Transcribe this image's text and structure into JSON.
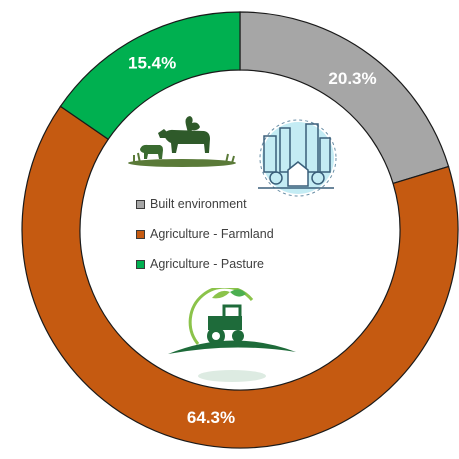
{
  "chart_data": {
    "type": "pie",
    "title": "",
    "categories": [
      "Built environment",
      "Agriculture - Farmland",
      "Agriculture - Pasture"
    ],
    "values": [
      20.3,
      64.3,
      15.4
    ],
    "value_labels": [
      "20.3%",
      "64.3%",
      "15.4%"
    ],
    "colors": [
      "#a6a6a6",
      "#c55a11",
      "#00b050"
    ],
    "donut": true,
    "start": "top",
    "legend_position": "center"
  },
  "legend": {
    "items": [
      {
        "label": "Built environment",
        "color": "#a6a6a6"
      },
      {
        "label": "Agriculture - Farmland",
        "color": "#c55a11"
      },
      {
        "label": "Agriculture - Pasture",
        "color": "#00b050"
      }
    ]
  },
  "icons": {
    "livestock": "livestock-icon",
    "city": "city-buildings-icon",
    "tractor": "tractor-icon"
  }
}
